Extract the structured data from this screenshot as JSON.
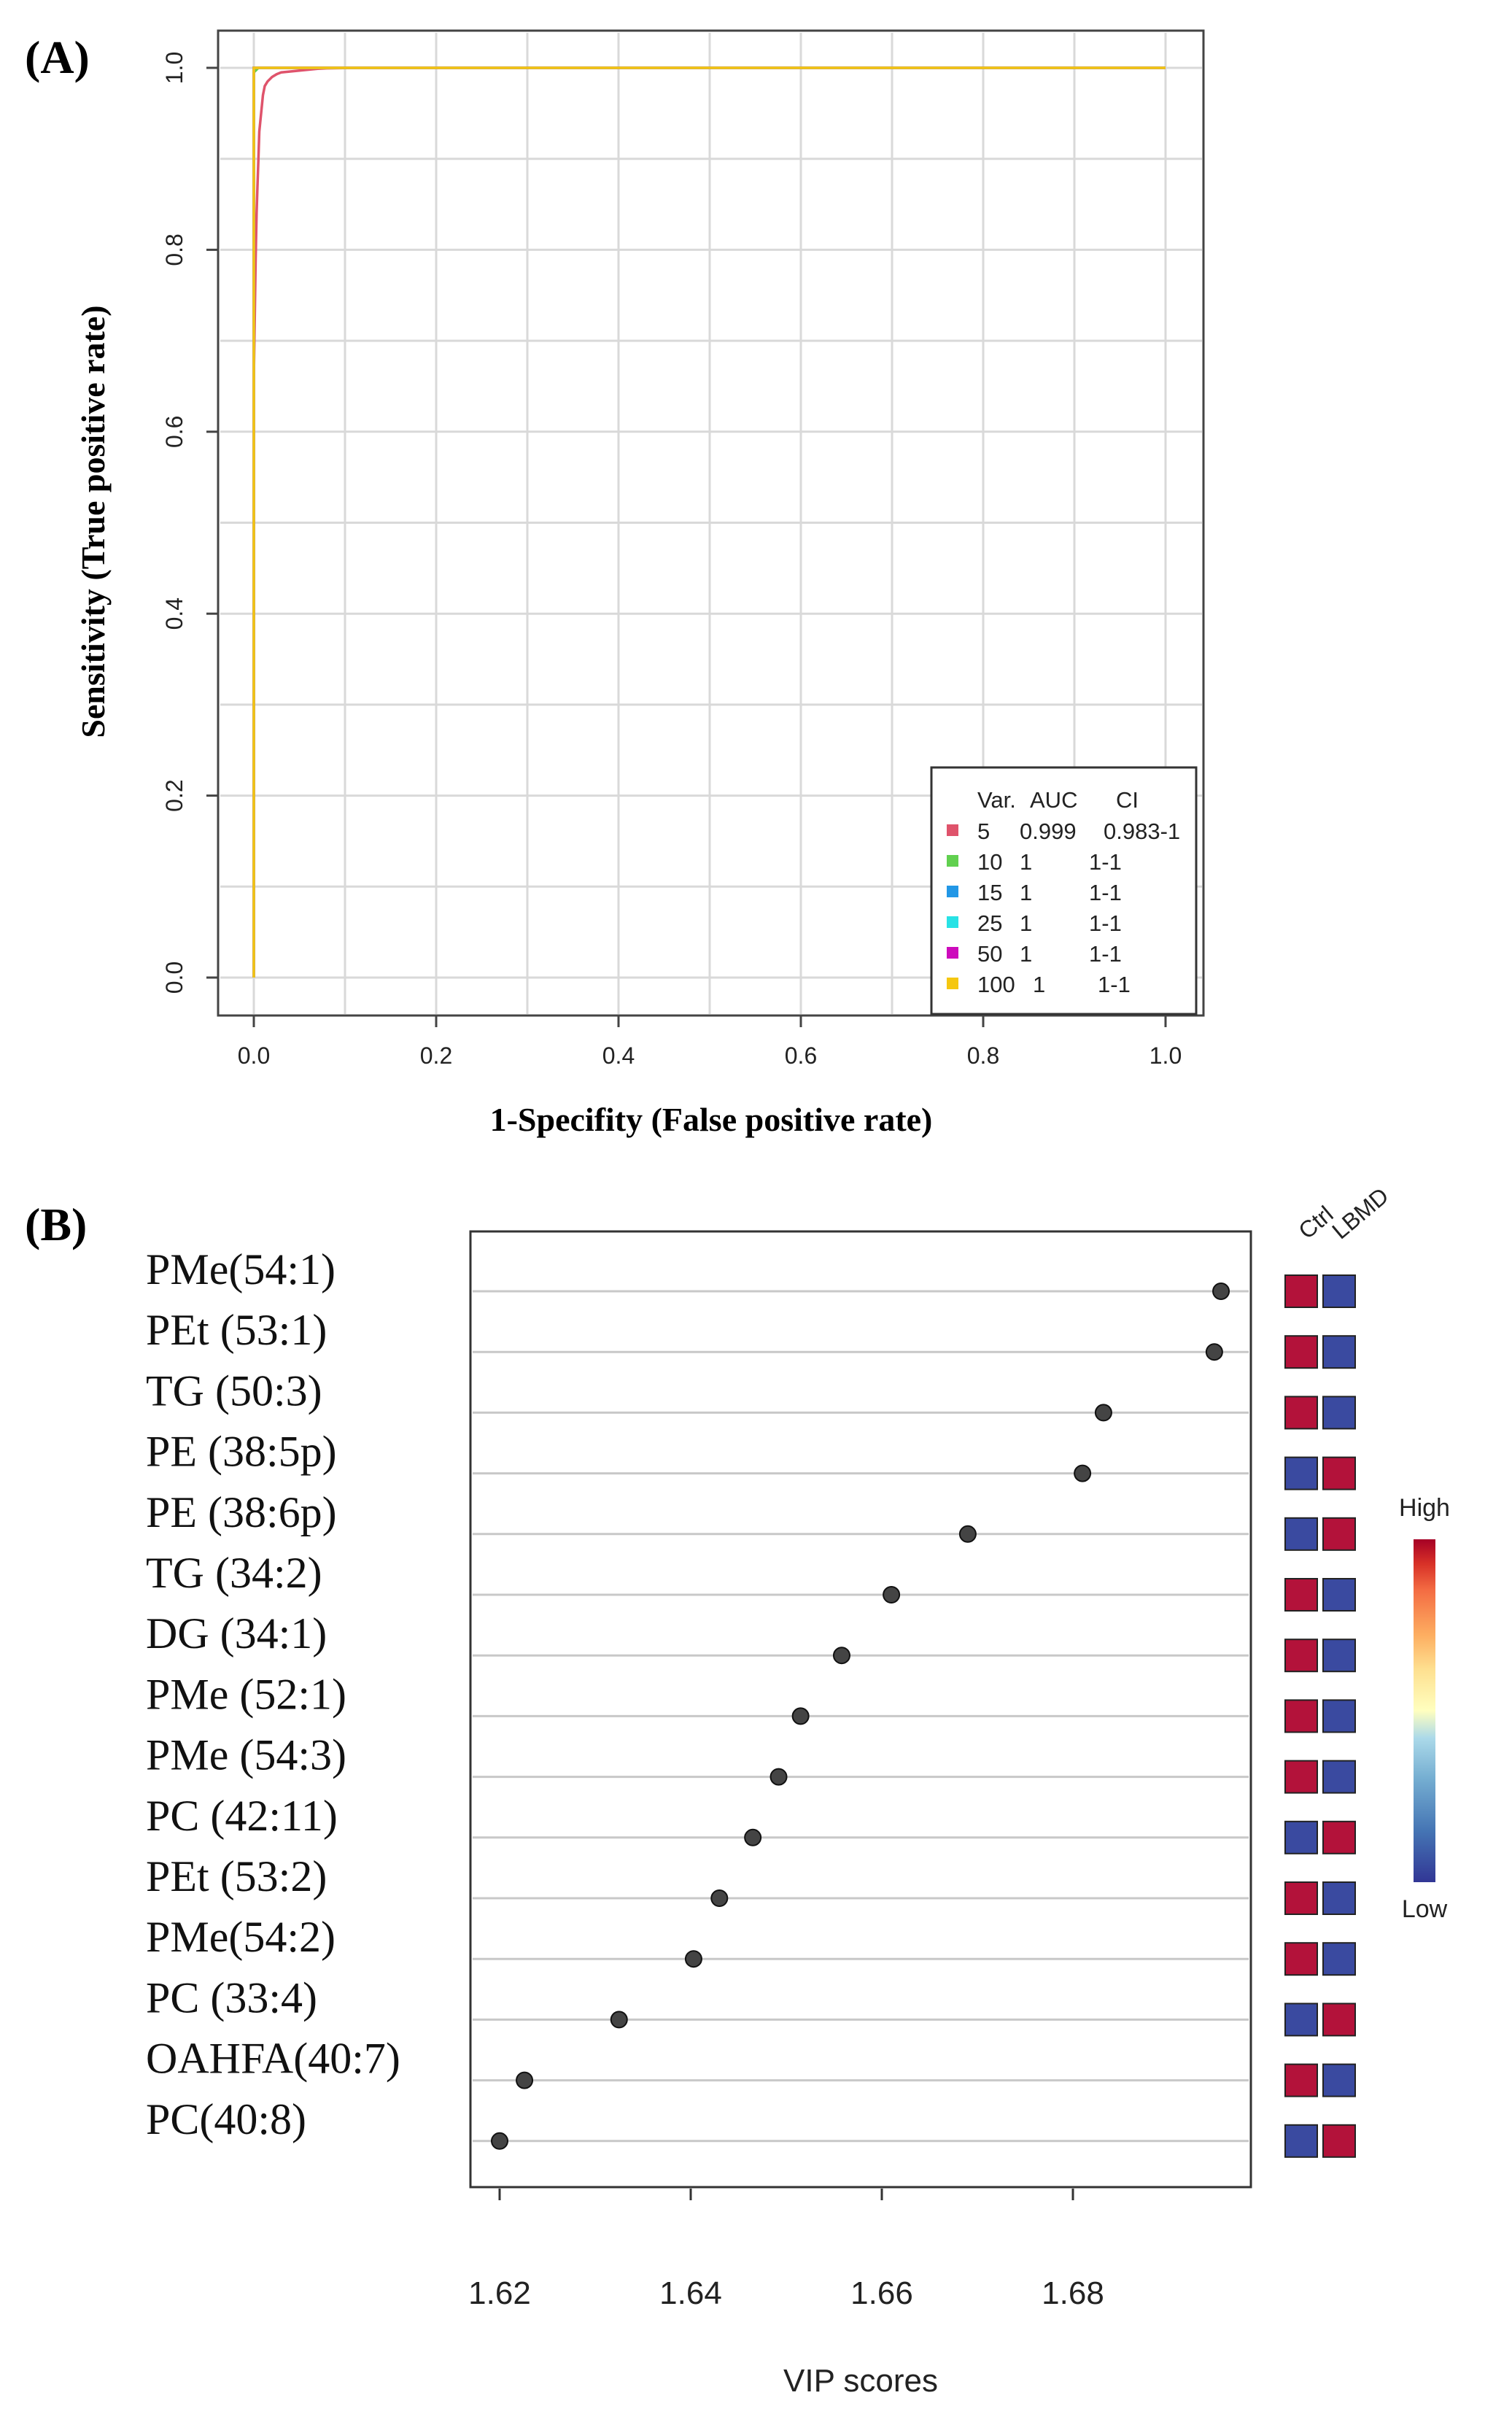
{
  "chart_data": [
    {
      "type": "line",
      "panel": "(A)",
      "title": "",
      "xlabel": "1-Specifity (False positive rate)",
      "ylabel": "Sensitivity (True positive rate)",
      "xlim": [
        0,
        1
      ],
      "ylim": [
        0,
        1
      ],
      "xticks": [
        "0.0",
        "0.2",
        "0.4",
        "0.6",
        "0.8",
        "1.0"
      ],
      "yticks": [
        "0.0",
        "0.2",
        "0.4",
        "0.6",
        "0.8",
        "1.0"
      ],
      "grid": true,
      "legend": {
        "placement": "bottom-right",
        "header": [
          "Var.",
          "AUC",
          "CI"
        ],
        "entries": [
          {
            "var": "5",
            "auc": "0.999",
            "ci": "0.983-1",
            "color": "#df536b"
          },
          {
            "var": "10",
            "auc": "1",
            "ci": "1-1",
            "color": "#61d04f"
          },
          {
            "var": "15",
            "auc": "1",
            "ci": "1-1",
            "color": "#2297e6"
          },
          {
            "var": "25",
            "auc": "1",
            "ci": "1-1",
            "color": "#28e2e5"
          },
          {
            "var": "50",
            "auc": "1",
            "ci": "1-1",
            "color": "#cd0bbc"
          },
          {
            "var": "100",
            "auc": "1",
            "ci": "1-1",
            "color": "#f5c710"
          }
        ]
      },
      "series": [
        {
          "name": "5",
          "color": "#df536b",
          "x": [
            0,
            0,
            0.002,
            0.003,
            0.004,
            0.005,
            0.006,
            0.008,
            0.01,
            0.012,
            0.015,
            0.02,
            0.025,
            0.03,
            0.04,
            0.05,
            0.06,
            0.07,
            0.08,
            0.1,
            0.12,
            1
          ],
          "y": [
            0,
            0.66,
            0.79,
            0.84,
            0.87,
            0.9,
            0.93,
            0.95,
            0.97,
            0.98,
            0.985,
            0.99,
            0.993,
            0.995,
            0.996,
            0.997,
            0.998,
            0.999,
            0.9995,
            0.9998,
            1,
            1
          ]
        },
        {
          "name": "10",
          "color": "#61d04f",
          "x": [
            0,
            0,
            0.005,
            1
          ],
          "y": [
            0,
            0.995,
            1,
            1
          ]
        },
        {
          "name": "15",
          "color": "#2297e6",
          "x": [
            0,
            0,
            1
          ],
          "y": [
            0,
            1,
            1
          ]
        },
        {
          "name": "25",
          "color": "#28e2e5",
          "x": [
            0,
            0,
            1
          ],
          "y": [
            0,
            1,
            1
          ]
        },
        {
          "name": "50",
          "color": "#cd0bbc",
          "x": [
            0,
            0,
            1
          ],
          "y": [
            0,
            1,
            1
          ]
        },
        {
          "name": "100",
          "color": "#f5c710",
          "x": [
            0,
            0,
            1
          ],
          "y": [
            0,
            1,
            1
          ]
        }
      ]
    },
    {
      "type": "scatter",
      "panel": "(B)",
      "title": "",
      "xlabel": "VIP scores",
      "ylabel": "",
      "xlim": [
        1.617,
        1.699
      ],
      "xticks": [
        "1.62",
        "1.64",
        "1.66",
        "1.68"
      ],
      "grid": true,
      "heat_columns": [
        "Ctrl",
        "LBMD"
      ],
      "colorbar": {
        "high": "High",
        "low": "Low",
        "high_color": "#a50026",
        "low_color": "#313695"
      },
      "heat_colors": {
        "high": "#b3123a",
        "low": "#3a4aa0"
      },
      "features": [
        {
          "name": "PMe(54:1)",
          "vip": 1.6955,
          "ctrl": "high",
          "lbmd": "low"
        },
        {
          "name": "PEt (53:1)",
          "vip": 1.6948,
          "ctrl": "high",
          "lbmd": "low"
        },
        {
          "name": "TG (50:3)",
          "vip": 1.6832,
          "ctrl": "high",
          "lbmd": "low"
        },
        {
          "name": "PE (38:5p)",
          "vip": 1.681,
          "ctrl": "low",
          "lbmd": "high"
        },
        {
          "name": "PE (38:6p)",
          "vip": 1.669,
          "ctrl": "low",
          "lbmd": "high"
        },
        {
          "name": "TG (34:2)",
          "vip": 1.661,
          "ctrl": "high",
          "lbmd": "low"
        },
        {
          "name": "DG (34:1)",
          "vip": 1.6558,
          "ctrl": "high",
          "lbmd": "low"
        },
        {
          "name": "PMe (52:1)",
          "vip": 1.6515,
          "ctrl": "high",
          "lbmd": "low"
        },
        {
          "name": "PMe (54:3)",
          "vip": 1.6492,
          "ctrl": "high",
          "lbmd": "low"
        },
        {
          "name": "PC (42:11)",
          "vip": 1.6465,
          "ctrl": "low",
          "lbmd": "high"
        },
        {
          "name": "PEt (53:2)",
          "vip": 1.643,
          "ctrl": "high",
          "lbmd": "low"
        },
        {
          "name": "PMe(54:2)",
          "vip": 1.6403,
          "ctrl": "high",
          "lbmd": "low"
        },
        {
          "name": "PC (33:4)",
          "vip": 1.6325,
          "ctrl": "low",
          "lbmd": "high"
        },
        {
          "name": "OAHFA(40:7)",
          "vip": 1.6226,
          "ctrl": "high",
          "lbmd": "low"
        },
        {
          "name": "PC(40:8)",
          "vip": 1.62,
          "ctrl": "low",
          "lbmd": "high"
        }
      ]
    }
  ]
}
